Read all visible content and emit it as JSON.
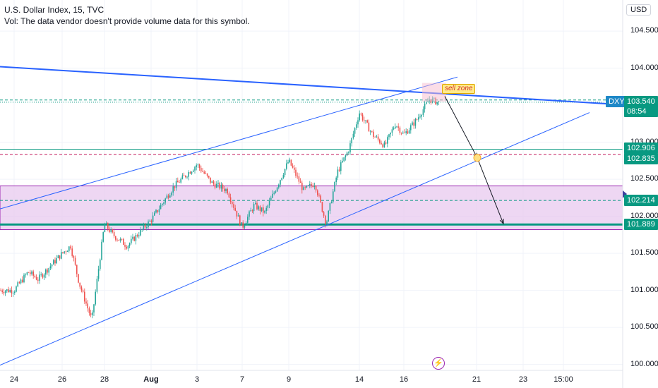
{
  "header": {
    "symbol_line": "U.S. Dollar Index, 15, TVC",
    "vol_line": "Vol: The data vendor doesn't provide volume data for this symbol."
  },
  "currency_button": "USD",
  "annotation": {
    "sell_zone_text": "sell zone",
    "lightning_icon": "lightning-icon"
  },
  "price_scale": {
    "ticks": [
      "104.500",
      "104.000",
      "103.000",
      "102.500",
      "102.000",
      "101.500",
      "101.000",
      "100.500",
      "100.000"
    ],
    "labels": {
      "symbol": "DXY",
      "last_price": "103.540",
      "countdown": "08:54",
      "level_upper_green": "102.906",
      "level_magenta": "102.835",
      "level_zone_mid": "102.214",
      "level_lower_green": "101.889"
    }
  },
  "time_scale": {
    "ticks": [
      "24",
      "26",
      "28",
      "Aug",
      "3",
      "7",
      "9",
      "14",
      "16",
      "21",
      "23",
      "15:00"
    ]
  },
  "colors": {
    "up": "#26a69a",
    "down": "#ef5350",
    "trendline": "#2962ff",
    "zone_fill": "#e1bee7",
    "zone_border": "#9c27b0",
    "green_level": "#089981",
    "magenta_level": "#c2185b",
    "price_label": "#089981"
  },
  "chart_data": {
    "type": "candlestick",
    "symbol": "U.S. Dollar Index",
    "interval": "15",
    "source": "TVC",
    "ylim": [
      99.92,
      104.92
    ],
    "price_ticks": [
      104.5,
      104.0,
      103.0,
      102.5,
      102.0,
      101.5,
      101.0,
      100.5,
      100.0
    ],
    "time_ticks": [
      "24",
      "26",
      "28",
      "Aug",
      "3",
      "7",
      "9",
      "14",
      "16",
      "21",
      "23",
      "15:00"
    ],
    "last_price": 103.54,
    "horizontal_levels": [
      {
        "value": 102.906,
        "style": "solid",
        "color": "green"
      },
      {
        "value": 102.835,
        "style": "dashed",
        "color": "magenta"
      },
      {
        "value": 102.214,
        "style": "dashed",
        "color": "green"
      },
      {
        "value": 101.889,
        "style": "solid",
        "color": "green"
      },
      {
        "value": 103.57,
        "style": "dashed",
        "color": "green"
      }
    ],
    "zone": {
      "from": 101.82,
      "to": 102.41,
      "color": "purple"
    },
    "trendlines": [
      {
        "name": "resistance",
        "from": {
          "t": "start",
          "price": 104.02
        },
        "to": {
          "t": "right edge",
          "price": 103.52
        }
      },
      {
        "name": "channel-upper",
        "from": {
          "t": "start",
          "price": 102.1
        },
        "to": {
          "t": "after 16",
          "price": 103.88
        }
      },
      {
        "name": "channel-lower",
        "from": {
          "t": "start",
          "price": 99.99
        },
        "to": {
          "t": "after 21",
          "price": 103.4
        }
      }
    ],
    "projection": [
      {
        "price": 103.62
      },
      {
        "price": 102.79
      },
      {
        "price": 101.9
      }
    ],
    "price_path": [
      {
        "t": "24",
        "price": 101.0
      },
      {
        "t": "24.5",
        "price": 101.25
      },
      {
        "t": "25",
        "price": 101.15
      },
      {
        "t": "26",
        "price": 101.5
      },
      {
        "t": "26.5",
        "price": 101.6
      },
      {
        "t": "27",
        "price": 101.1
      },
      {
        "t": "27.5",
        "price": 100.6
      },
      {
        "t": "28",
        "price": 101.9
      },
      {
        "t": "28.5",
        "price": 101.75
      },
      {
        "t": "29",
        "price": 101.6
      },
      {
        "t": "Aug",
        "price": 101.95
      },
      {
        "t": "Aug 2",
        "price": 102.4
      },
      {
        "t": "3",
        "price": 102.7
      },
      {
        "t": "4",
        "price": 102.45
      },
      {
        "t": "6",
        "price": 102.35
      },
      {
        "t": "7",
        "price": 101.85
      },
      {
        "t": "8",
        "price": 102.15
      },
      {
        "t": "8.5",
        "price": 102.05
      },
      {
        "t": "9",
        "price": 102.75
      },
      {
        "t": "10",
        "price": 102.35
      },
      {
        "t": "10.5",
        "price": 102.45
      },
      {
        "t": "11",
        "price": 101.9
      },
      {
        "t": "12",
        "price": 102.6
      },
      {
        "t": "13",
        "price": 102.9
      },
      {
        "t": "14",
        "price": 103.4
      },
      {
        "t": "14.5",
        "price": 103.1
      },
      {
        "t": "15",
        "price": 102.95
      },
      {
        "t": "15.5",
        "price": 103.25
      },
      {
        "t": "16",
        "price": 103.1
      },
      {
        "t": "16.5",
        "price": 103.3
      },
      {
        "t": "17",
        "price": 103.58
      },
      {
        "t": "17.3",
        "price": 103.54
      }
    ]
  }
}
